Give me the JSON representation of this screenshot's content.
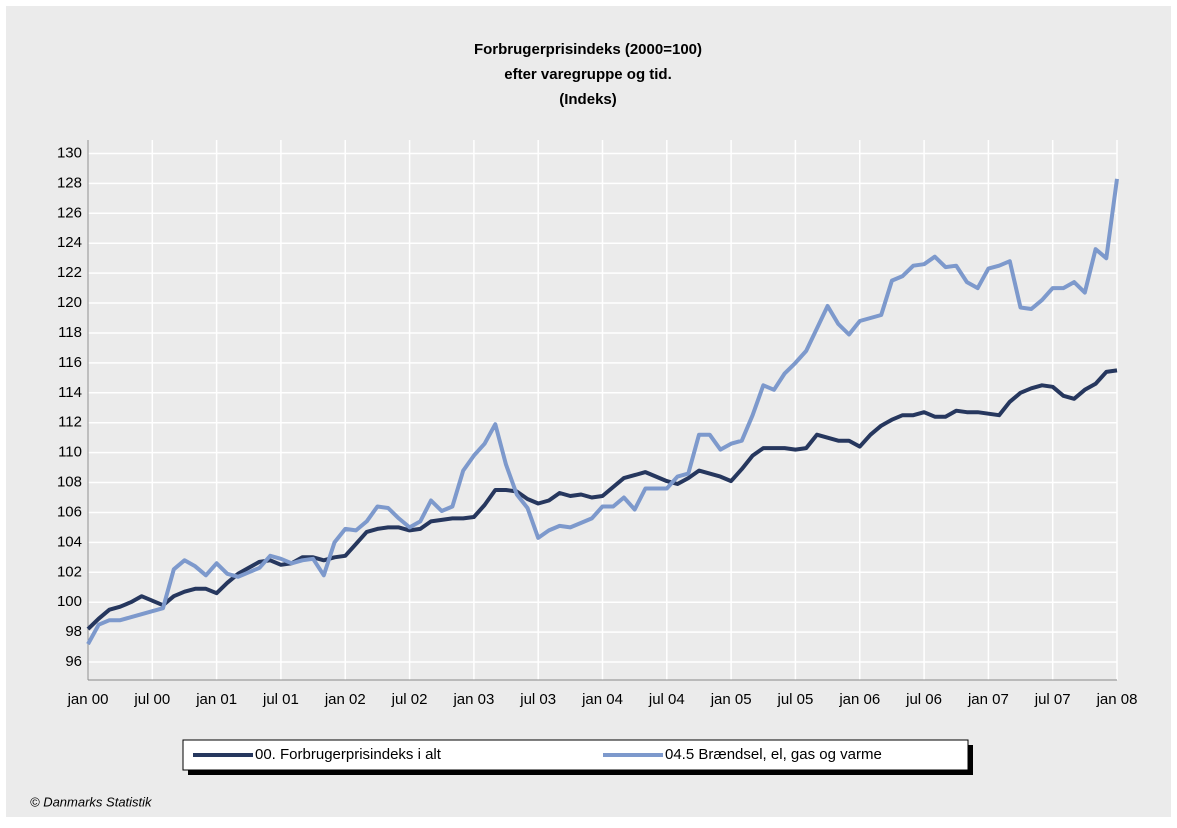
{
  "chart_data": {
    "type": "line",
    "title": "Forbrugerprisindeks (2000=100)",
    "subtitle": "efter varegruppe og tid.",
    "unit_label": "(Indeks)",
    "source": "© Danmarks Statistik",
    "categories": [
      "jan 00",
      null,
      null,
      null,
      null,
      null,
      "jul 00",
      null,
      null,
      null,
      null,
      null,
      "jan 01",
      null,
      null,
      null,
      null,
      null,
      "jul 01",
      null,
      null,
      null,
      null,
      null,
      "jan 02",
      null,
      null,
      null,
      null,
      null,
      "jul 02",
      null,
      null,
      null,
      null,
      null,
      "jan 03",
      null,
      null,
      null,
      null,
      null,
      "jul 03",
      null,
      null,
      null,
      null,
      null,
      "jan 04",
      null,
      null,
      null,
      null,
      null,
      "jul 04",
      null,
      null,
      null,
      null,
      null,
      "jan 05",
      null,
      null,
      null,
      null,
      null,
      "jul 05",
      null,
      null,
      null,
      null,
      null,
      "jan 06",
      null,
      null,
      null,
      null,
      null,
      "jul 06",
      null,
      null,
      null,
      null,
      null,
      "jan 07",
      null,
      null,
      null,
      null,
      null,
      "jul 07",
      null,
      null,
      null,
      null,
      null,
      "jan 08"
    ],
    "series": [
      {
        "name": "00. Forbrugerprisindeks i alt",
        "color": "#26375e",
        "values": [
          98.2,
          98.9,
          99.5,
          99.7,
          100,
          100.4,
          100.1,
          99.8,
          100.4,
          100.7,
          100.9,
          100.9,
          100.6,
          101.3,
          101.9,
          102.3,
          102.7,
          102.8,
          102.5,
          102.6,
          103,
          103,
          102.8,
          103,
          103.1,
          103.9,
          104.7,
          104.9,
          105,
          105,
          104.8,
          104.9,
          105.4,
          105.5,
          105.6,
          105.6,
          105.7,
          106.5,
          107.5,
          107.5,
          107.4,
          106.9,
          106.6,
          106.8,
          107.3,
          107.1,
          107.2,
          107,
          107.1,
          107.7,
          108.3,
          108.5,
          108.7,
          108.4,
          108.1,
          107.9,
          108.3,
          108.8,
          108.6,
          108.4,
          108.1,
          108.9,
          109.8,
          110.3,
          110.3,
          110.3,
          110.2,
          110.3,
          111.2,
          111,
          110.8,
          110.8,
          110.4,
          111.2,
          111.8,
          112.2,
          112.5,
          112.5,
          112.7,
          112.4,
          112.4,
          112.8,
          112.7,
          112.7,
          112.6,
          112.5,
          113.4,
          114,
          114.3,
          114.5,
          114.4,
          113.8,
          113.6,
          114.2,
          114.6,
          115.4,
          115.5
        ]
      },
      {
        "name": "04.5 Brændsel, el, gas og varme",
        "color": "#7d99cc",
        "values": [
          97.2,
          98.5,
          98.8,
          98.8,
          99,
          99.2,
          99.4,
          99.6,
          102.2,
          102.8,
          102.4,
          101.8,
          102.6,
          101.9,
          101.7,
          102,
          102.3,
          103.1,
          102.9,
          102.6,
          102.8,
          102.9,
          101.8,
          104,
          104.9,
          104.8,
          105.4,
          106.4,
          106.3,
          105.6,
          105,
          105.4,
          106.8,
          106.1,
          106.4,
          108.8,
          109.8,
          110.6,
          111.9,
          109.2,
          107.2,
          106.3,
          104.3,
          104.8,
          105.1,
          105,
          105.3,
          105.6,
          106.4,
          106.4,
          107,
          106.2,
          107.6,
          107.6,
          107.6,
          108.4,
          108.6,
          111.2,
          111.2,
          110.2,
          110.6,
          110.8,
          112.5,
          114.5,
          114.2,
          115.3,
          116,
          116.8,
          118.3,
          119.8,
          118.6,
          117.9,
          118.8,
          119,
          119.2,
          121.5,
          121.8,
          122.5,
          122.6,
          123.1,
          122.4,
          122.5,
          121.4,
          121,
          122.3,
          122.5,
          122.8,
          119.7,
          119.6,
          120.2,
          121,
          121,
          121.4,
          120.7,
          123.6,
          123,
          128.3
        ]
      }
    ],
    "ylim": [
      94.8,
      130.9
    ],
    "yticks": [
      96,
      98,
      100,
      102,
      104,
      106,
      108,
      110,
      112,
      114,
      116,
      118,
      120,
      122,
      124,
      126,
      128,
      130
    ],
    "grid": true
  }
}
